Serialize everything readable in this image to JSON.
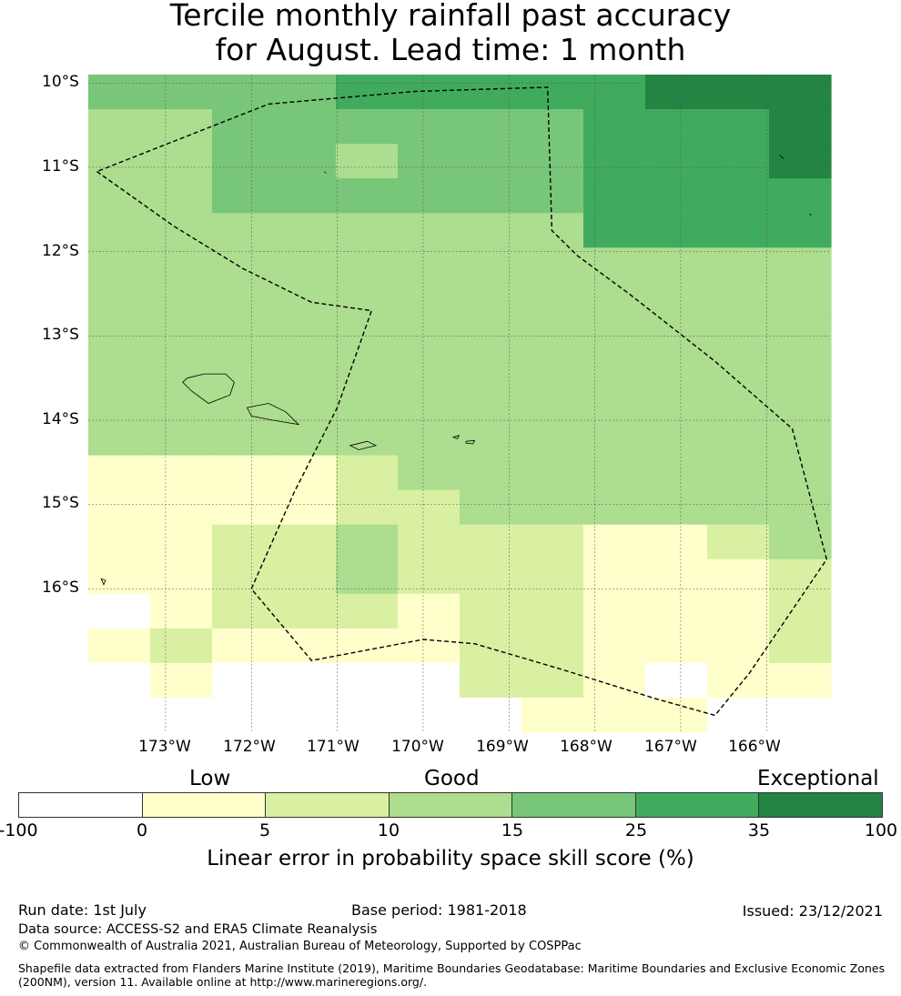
{
  "title": {
    "line1": "Tercile monthly rainfall past accuracy",
    "line2": "for August. Lead time: 1 month"
  },
  "map": {
    "lat_labels": [
      "10°S",
      "11°S",
      "12°S",
      "13°S",
      "14°S",
      "15°S",
      "16°S"
    ],
    "lon_labels": [
      "173°W",
      "172°W",
      "171°W",
      "170°W",
      "169°W",
      "168°W",
      "167°W",
      "166°W"
    ],
    "grid_lons": [
      -173,
      -172,
      -171,
      -170,
      -169,
      -168,
      -167,
      -166
    ],
    "grid_lats": [
      -10,
      -11,
      -12,
      -13,
      -14,
      -15,
      -16
    ],
    "x_range": [
      -173.9,
      -165.25
    ],
    "y_range": [
      -17.7,
      -9.9
    ],
    "cell_values": [
      [
        4,
        4,
        4,
        4,
        5,
        5,
        5,
        5,
        5,
        6,
        6,
        6
      ],
      [
        3,
        3,
        4,
        4,
        4,
        4,
        4,
        4,
        5,
        5,
        5,
        6
      ],
      [
        3,
        3,
        4,
        4,
        3,
        4,
        4,
        4,
        5,
        5,
        5,
        6
      ],
      [
        3,
        3,
        4,
        4,
        4,
        4,
        4,
        4,
        5,
        5,
        5,
        5
      ],
      [
        3,
        3,
        3,
        3,
        3,
        3,
        3,
        3,
        5,
        5,
        5,
        5
      ],
      [
        3,
        3,
        3,
        3,
        3,
        3,
        3,
        3,
        3,
        3,
        3,
        3
      ],
      [
        3,
        3,
        3,
        3,
        3,
        3,
        3,
        3,
        3,
        3,
        3,
        3
      ],
      [
        3,
        3,
        3,
        3,
        3,
        3,
        3,
        3,
        3,
        3,
        3,
        3
      ],
      [
        3,
        3,
        3,
        3,
        3,
        3,
        3,
        3,
        3,
        3,
        3,
        3
      ],
      [
        3,
        3,
        3,
        3,
        3,
        3,
        3,
        3,
        3,
        3,
        3,
        3
      ],
      [
        3,
        3,
        3,
        3,
        3,
        3,
        3,
        3,
        3,
        3,
        3,
        3
      ],
      [
        1,
        1,
        1,
        1,
        2,
        3,
        3,
        3,
        3,
        3,
        3,
        3
      ],
      [
        1,
        1,
        1,
        1,
        2,
        2,
        3,
        3,
        3,
        3,
        3,
        3
      ],
      [
        1,
        1,
        2,
        2,
        3,
        2,
        2,
        2,
        1,
        1,
        2,
        3
      ],
      [
        1,
        1,
        2,
        2,
        3,
        2,
        2,
        2,
        1,
        1,
        1,
        2
      ],
      [
        0,
        1,
        2,
        2,
        2,
        1,
        2,
        2,
        1,
        1,
        1,
        2
      ],
      [
        1,
        2,
        1,
        1,
        1,
        1,
        2,
        2,
        1,
        1,
        1,
        2
      ],
      [
        0,
        1,
        0,
        0,
        0,
        0,
        2,
        2,
        1,
        0,
        1,
        1
      ],
      [
        0,
        0,
        0,
        -1,
        -1,
        0,
        0,
        1,
        1,
        1,
        -1,
        0
      ]
    ],
    "eez_boundary": [
      [
        -173.8,
        -11.05
      ],
      [
        -172.9,
        -11.7
      ],
      [
        -172.1,
        -12.2
      ],
      [
        -171.3,
        -12.6
      ],
      [
        -170.6,
        -12.7
      ],
      [
        -171.0,
        -13.85
      ],
      [
        -171.5,
        -14.85
      ],
      [
        -172.0,
        -16.0
      ],
      [
        -171.3,
        -16.85
      ],
      [
        -170.0,
        -16.6
      ],
      [
        -169.4,
        -16.65
      ],
      [
        -168.4,
        -16.95
      ],
      [
        -167.3,
        -17.3
      ],
      [
        -166.6,
        -17.5
      ],
      [
        -166.2,
        -17.0
      ],
      [
        -165.3,
        -15.65
      ],
      [
        -165.7,
        -14.1
      ],
      [
        -166.6,
        -13.3
      ],
      [
        -167.6,
        -12.5
      ],
      [
        -168.2,
        -12.05
      ],
      [
        -168.5,
        -11.75
      ],
      [
        -168.55,
        -10.05
      ],
      [
        -170.1,
        -10.1
      ],
      [
        -171.8,
        -10.25
      ],
      [
        -173.8,
        -11.05
      ]
    ],
    "islands": [
      [
        [
          -172.75,
          -13.5
        ],
        [
          -172.55,
          -13.45
        ],
        [
          -172.3,
          -13.45
        ],
        [
          -172.2,
          -13.55
        ],
        [
          -172.25,
          -13.7
        ],
        [
          -172.5,
          -13.8
        ],
        [
          -172.7,
          -13.65
        ],
        [
          -172.8,
          -13.55
        ]
      ],
      [
        [
          -172.05,
          -13.85
        ],
        [
          -171.8,
          -13.8
        ],
        [
          -171.6,
          -13.9
        ],
        [
          -171.45,
          -14.05
        ],
        [
          -171.75,
          -14.0
        ],
        [
          -172.0,
          -13.95
        ]
      ],
      [
        [
          -170.85,
          -14.3
        ],
        [
          -170.65,
          -14.25
        ],
        [
          -170.55,
          -14.3
        ],
        [
          -170.75,
          -14.35
        ]
      ],
      [
        [
          -169.65,
          -14.2
        ],
        [
          -169.58,
          -14.18
        ],
        [
          -169.6,
          -14.22
        ]
      ],
      [
        [
          -169.5,
          -14.25
        ],
        [
          -169.4,
          -14.24
        ],
        [
          -169.42,
          -14.28
        ],
        [
          -169.5,
          -14.27
        ]
      ],
      [
        [
          -173.75,
          -15.88
        ],
        [
          -173.7,
          -15.9
        ],
        [
          -173.72,
          -15.95
        ]
      ],
      [
        [
          -171.15,
          -11.05
        ],
        [
          -171.13,
          -11.07
        ]
      ],
      [
        [
          -165.85,
          -10.85
        ],
        [
          -165.8,
          -10.9
        ]
      ],
      [
        [
          -165.5,
          -11.55
        ],
        [
          -165.48,
          -11.57
        ]
      ]
    ]
  },
  "colorbar": {
    "category_low": "Low",
    "category_good": "Good",
    "category_exceptional": "Exceptional",
    "colors": [
      "#ffffff",
      "#ffffcc",
      "#d9f0a3",
      "#addd8e",
      "#78c679",
      "#41ab5d",
      "#238443"
    ],
    "ticks": [
      "-100",
      "0",
      "5",
      "10",
      "15",
      "25",
      "35",
      "100"
    ],
    "label": "Linear error in probability space skill score (%)"
  },
  "footer": {
    "run_date": "Run date: 1st July",
    "base_period": "Base period: 1981-2018",
    "issued": "Issued: 23/12/2021",
    "data_source": "Data source: ACCESS-S2 and ERA5 Climate Reanalysis",
    "copyright": "© Commonwealth of Australia 2021, Australian Bureau of Meteorology, Supported by COSPPac",
    "shapefile_line1": "Shapefile data extracted from Flanders Marine Institute (2019), Maritime Boundaries Geodatabase: Maritime Boundaries and Exclusive Economic Zones",
    "shapefile_line2": "(200NM), version 11. Available online at http://www.marineregions.org/."
  }
}
